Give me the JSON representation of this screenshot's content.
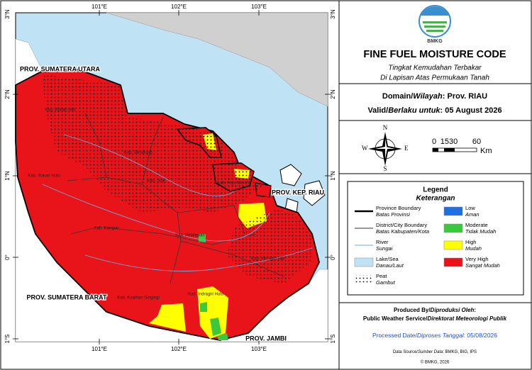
{
  "map": {
    "lon_labels": [
      "101°E",
      "102°E",
      "103°E"
    ],
    "lat_labels": [
      "3°N",
      "2°N",
      "1°N",
      "0°",
      "1°S"
    ],
    "place_labels": [
      "PROV. SUMATERA UTARA",
      "PROV. SUMATERA BARAT",
      "PROV. JAMBI",
      "PROV. KEP. RIAU",
      "Kab. Rokan Hulu",
      "Kab. Kampar",
      "Kab. Pelalawan",
      "Kab. Siak",
      "Kab. Bengkalis",
      "Kab. Indragiri Hulu",
      "Kab. Indragiri Hilir",
      "Kab. Kuantan Singingi",
      "Kab. Rokan Hilir",
      "Kab. Kep. Meranti"
    ]
  },
  "header": {
    "logo": "BMKG",
    "title": "FINE FUEL MOISTURE CODE",
    "subtitle": [
      "Tingkat Kemudahan Terbakar",
      "Di Lapisan Atas Permukaan Tanah"
    ]
  },
  "info": {
    "domain": [
      "Domain/",
      "Wilayah",
      ": Prov. RIAU"
    ],
    "valid": [
      "Valid/",
      "Berlaku untuk",
      ": 05 August 2026"
    ]
  },
  "compass": {
    "n": "N",
    "s": "S",
    "e": "E",
    "w": "W"
  },
  "scale": {
    "ticks": [
      "0",
      "1530",
      "60"
    ],
    "unit": "Km"
  },
  "legend": {
    "title": "Legend",
    "subtitle": "Keterangan",
    "items": [
      {
        "name": "Province Boundary",
        "name_id": "Batas Provinsi",
        "symbol": "line",
        "color": "#000000"
      },
      {
        "name": "District/City Boundary",
        "name_id": "Batas Kabupaten/Kota",
        "symbol": "thin-line",
        "color": "#333333"
      },
      {
        "name": "River",
        "name_id": "Sungai",
        "symbol": "thin-line",
        "color": "#6fa8dc"
      },
      {
        "name": "Lake/Sea",
        "name_id": "Danau/Laut",
        "symbol": "box",
        "color": "#bfe3f5"
      },
      {
        "name": "Peat",
        "name_id": "Gambut",
        "symbol": "dots",
        "color": "#ffffff"
      },
      {
        "name": "Low",
        "name_id": "Aman",
        "symbol": "box",
        "color": "#1f6fe0"
      },
      {
        "name": "Moderate",
        "name_id": "Tidak Mudah",
        "symbol": "box",
        "color": "#3cc83c"
      },
      {
        "name": "High",
        "name_id": "Mudah",
        "symbol": "box",
        "color": "#ffff00"
      },
      {
        "name": "Very High",
        "name_id": "Sangat Mudah",
        "symbol": "box",
        "color": "#e8141a"
      }
    ]
  },
  "footer": {
    "produced_by": [
      "Produced By/",
      "Diproduksi Oleh",
      ":"
    ],
    "producer": [
      "Public Weather Service/",
      "Direktorat Meteorologi Publik"
    ],
    "processed": [
      "Processed Date/",
      "Diproses Tanggal",
      ": 05/08/2026"
    ],
    "source": [
      "Data Source/",
      "Sumber Data",
      ": BMKG, BIG, IPS"
    ],
    "copyright": "© BMKG, 2026"
  }
}
